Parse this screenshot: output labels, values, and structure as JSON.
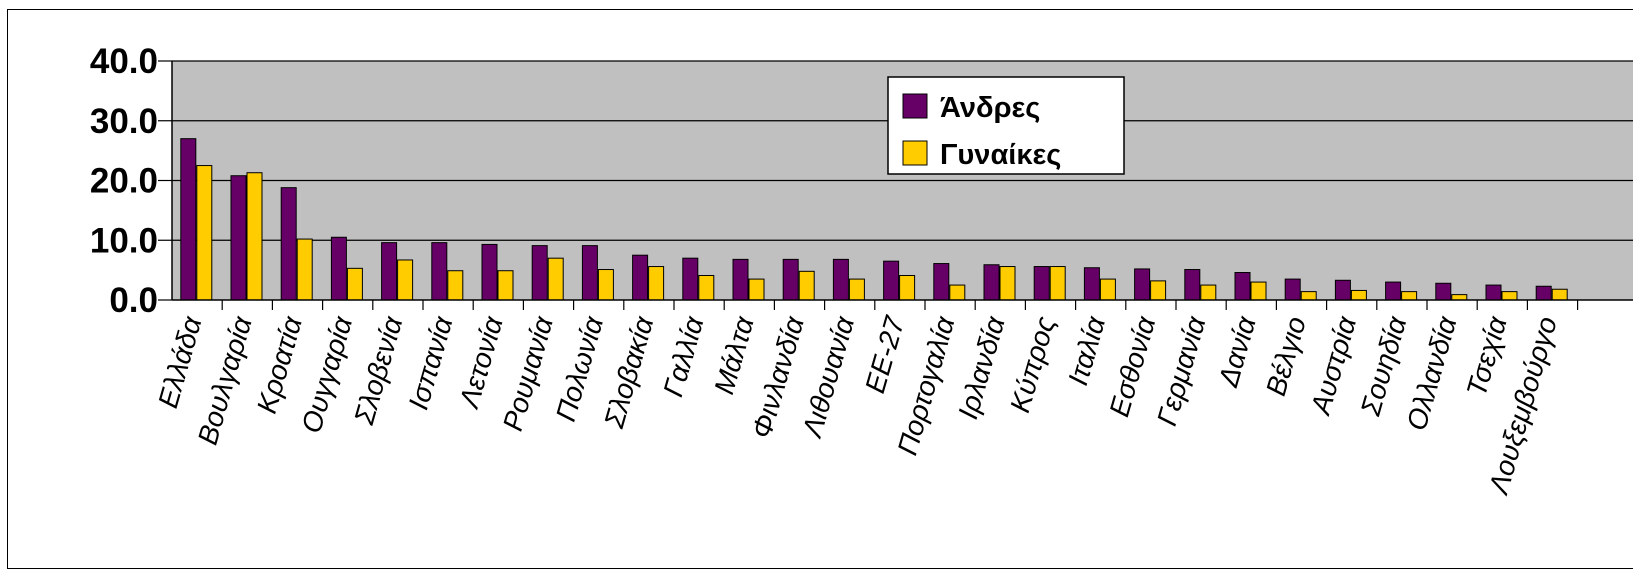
{
  "chart_data": {
    "type": "bar",
    "title": "",
    "xlabel": "",
    "ylabel": "",
    "ylim": [
      0,
      40
    ],
    "yticks": [
      "40.0",
      "30.0",
      "20.0",
      "10.0",
      "0.0"
    ],
    "grid": true,
    "legend_position": "top-right",
    "categories": [
      "Ελλάδα",
      "Βουλγαρία",
      "Κροατία",
      "Ουγγαρία",
      "Σλοβενία",
      "Ισπανία",
      "Λετονία",
      "Ρουμανία",
      "Πολωνία",
      "Σλοβακία",
      "Γαλλία",
      "Μάλτα",
      "Φινλανδία",
      "Λιθουανία",
      "ΕΕ-27",
      "Πορτογαλία",
      "Ιρλανδία",
      "Κύπρος",
      "Ιταλία",
      "Εσθονία",
      "Γερμανία",
      "Δανία",
      "Βέλγιο",
      "Αυστρία",
      "Σουηδία",
      "Ολλανδία",
      "Τσεχία",
      "Λουξεμβούργο"
    ],
    "series": [
      {
        "name": "Άνδρες",
        "color": "#660066",
        "values": [
          27.0,
          20.8,
          18.8,
          10.5,
          9.6,
          9.6,
          9.3,
          9.1,
          9.1,
          7.5,
          7.0,
          6.8,
          6.8,
          6.8,
          6.5,
          6.1,
          5.9,
          5.6,
          5.4,
          5.2,
          5.1,
          4.6,
          3.5,
          3.3,
          3.0,
          2.8,
          2.5,
          2.3
        ]
      },
      {
        "name": "Γυναίκες",
        "color": "#ffcc00",
        "values": [
          22.5,
          21.3,
          10.2,
          5.3,
          6.7,
          4.9,
          4.9,
          7.0,
          5.1,
          5.6,
          4.1,
          3.5,
          4.8,
          3.5,
          4.1,
          2.5,
          5.6,
          5.6,
          3.5,
          3.2,
          2.5,
          3.0,
          1.4,
          1.6,
          1.4,
          0.9,
          1.4,
          1.8
        ]
      }
    ]
  }
}
